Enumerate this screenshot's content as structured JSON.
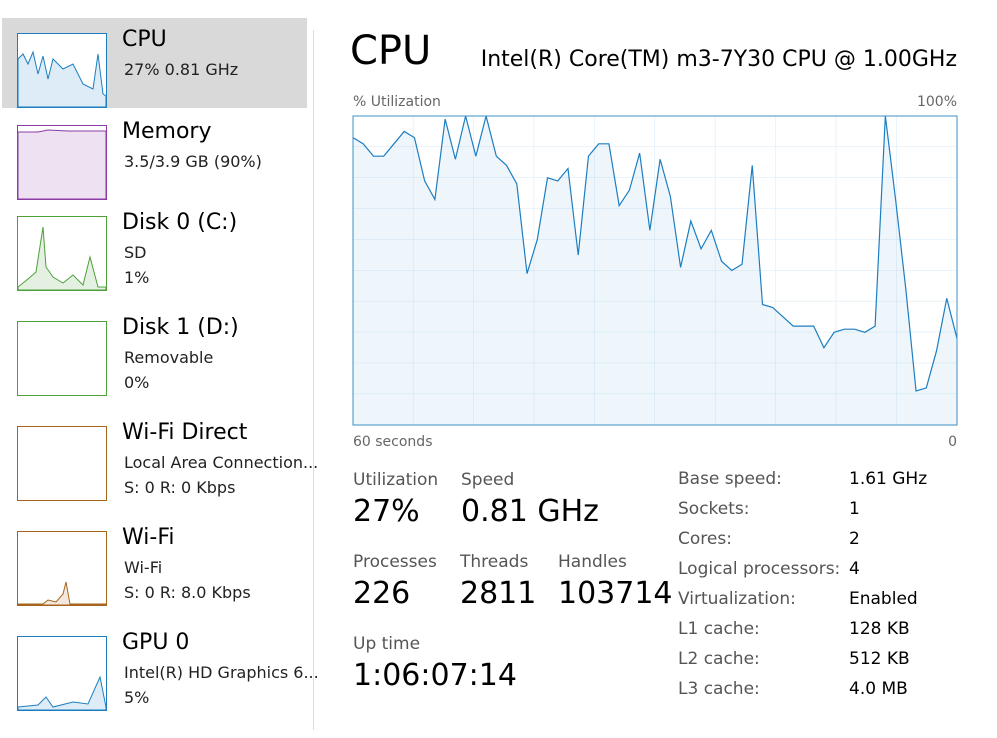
{
  "sidebar": [
    {
      "title": "CPU",
      "line1": "27%  0.81 GHz"
    },
    {
      "title": "Memory",
      "line1": "3.5/3.9 GB (90%)"
    },
    {
      "title": "Disk 0 (C:)",
      "line1": "SD",
      "line2": "1%"
    },
    {
      "title": "Disk 1 (D:)",
      "line1": "Removable",
      "line2": "0%"
    },
    {
      "title": "Wi-Fi Direct",
      "line1": "Local Area Connection...",
      "line2": "S: 0  R: 0 Kbps"
    },
    {
      "title": "Wi-Fi",
      "line1": "Wi-Fi",
      "line2": "S: 0  R: 8.0 Kbps"
    },
    {
      "title": "GPU 0",
      "line1": "Intel(R) HD Graphics 6...",
      "line2": "5%"
    }
  ],
  "header": {
    "title": "CPU",
    "model": "Intel(R) Core(TM) m3-7Y30 CPU @ 1.00GHz"
  },
  "chart_data": {
    "type": "line",
    "y_label": "% Utilization",
    "x_start_label": "60 seconds",
    "x_end_label": "0",
    "ylim": [
      0,
      100
    ],
    "yticks": [
      {
        "value": 100,
        "label": "100%"
      }
    ],
    "series": [
      {
        "name": "CPU",
        "color": "#1c7ec1",
        "values": [
          93,
          91,
          87,
          87,
          91,
          95,
          93,
          79,
          73,
          99,
          86,
          100,
          87,
          100,
          87,
          84,
          78,
          49,
          60,
          80,
          79,
          83,
          55,
          87,
          91,
          91,
          71,
          76,
          88,
          63,
          86,
          74,
          51,
          66,
          57,
          63,
          53,
          50,
          52,
          84,
          39,
          38,
          35,
          32,
          32,
          32,
          25,
          30,
          31,
          31,
          30,
          32,
          100,
          73,
          44,
          11,
          12,
          24,
          41,
          28
        ]
      }
    ]
  },
  "stats": [
    {
      "label": "Utilization",
      "value": "27%"
    },
    {
      "label": "Speed",
      "value": "0.81 GHz"
    },
    {
      "label": "Processes",
      "value": "226"
    },
    {
      "label": "Threads",
      "value": "2811"
    },
    {
      "label": "Handles",
      "value": "103714"
    },
    {
      "label": "Up time",
      "value": "1:06:07:14"
    }
  ],
  "details": [
    [
      "Base speed:",
      "1.61 GHz"
    ],
    [
      "Sockets:",
      "1"
    ],
    [
      "Cores:",
      "2"
    ],
    [
      "Logical processors:",
      "4"
    ],
    [
      "Virtualization:",
      "Enabled"
    ],
    [
      "L1 cache:",
      "128 KB"
    ],
    [
      "L2 cache:",
      "512 KB"
    ],
    [
      "L3 cache:",
      "4.0 MB"
    ]
  ]
}
